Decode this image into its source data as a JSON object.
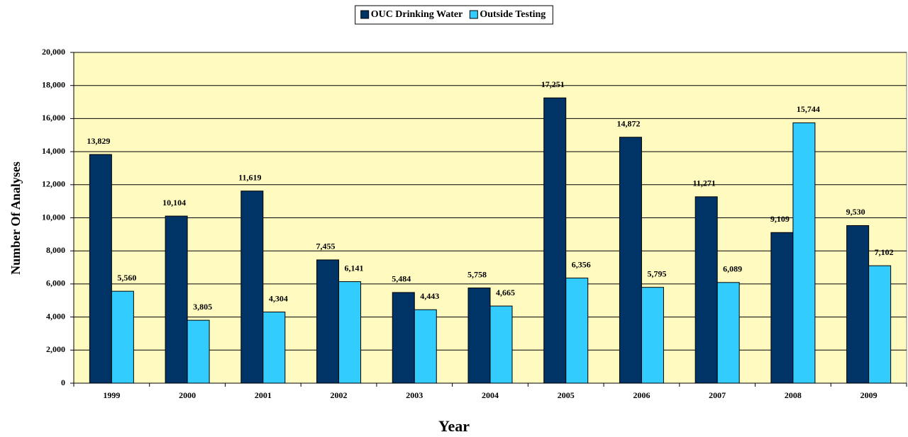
{
  "chart_data": {
    "type": "bar",
    "categories": [
      "1999",
      "2000",
      "2001",
      "2002",
      "2003",
      "2004",
      "2005",
      "2006",
      "2007",
      "2008",
      "2009"
    ],
    "series": [
      {
        "name": "OUC Drinking Water",
        "color": "#003366",
        "values": [
          13829,
          10104,
          11619,
          7455,
          5484,
          5758,
          17251,
          14872,
          11271,
          9109,
          9530
        ],
        "value_labels": [
          "13,829",
          "10,104",
          "11,619",
          "7,455",
          "5,484",
          "5,758",
          "17,251",
          "14,872",
          "11,271",
          "9,109",
          "9,530"
        ]
      },
      {
        "name": "Outside Testing",
        "color": "#33CCFF",
        "values": [
          5560,
          3805,
          4304,
          6141,
          4443,
          4665,
          6356,
          5795,
          6089,
          15744,
          7102
        ],
        "value_labels": [
          "5,560",
          "3,805",
          "4,304",
          "6,141",
          "4,443",
          "4,665",
          "6,356",
          "5,795",
          "6,089",
          "15,744",
          "7,102"
        ]
      }
    ],
    "xlabel": "Year",
    "ylabel": "Number Of Analyses",
    "ylim": [
      0,
      20000
    ],
    "yticks": [
      0,
      {
        "value": 2000,
        "label": "2,000"
      },
      {
        "value": 4000,
        "label": "4,000"
      },
      {
        "value": 6000,
        "label": "6,000"
      },
      {
        "value": 8000,
        "label": "8,000"
      },
      {
        "value": 10000,
        "label": "10,000"
      },
      {
        "value": 12000,
        "label": "12,000"
      },
      {
        "value": 14000,
        "label": "14,000"
      },
      {
        "value": 16000,
        "label": "16,000"
      },
      {
        "value": 18000,
        "label": "18,000"
      },
      {
        "value": 20000,
        "label": "20,000"
      }
    ],
    "grid": true,
    "legend": "top",
    "background": "#FFFAC0"
  }
}
